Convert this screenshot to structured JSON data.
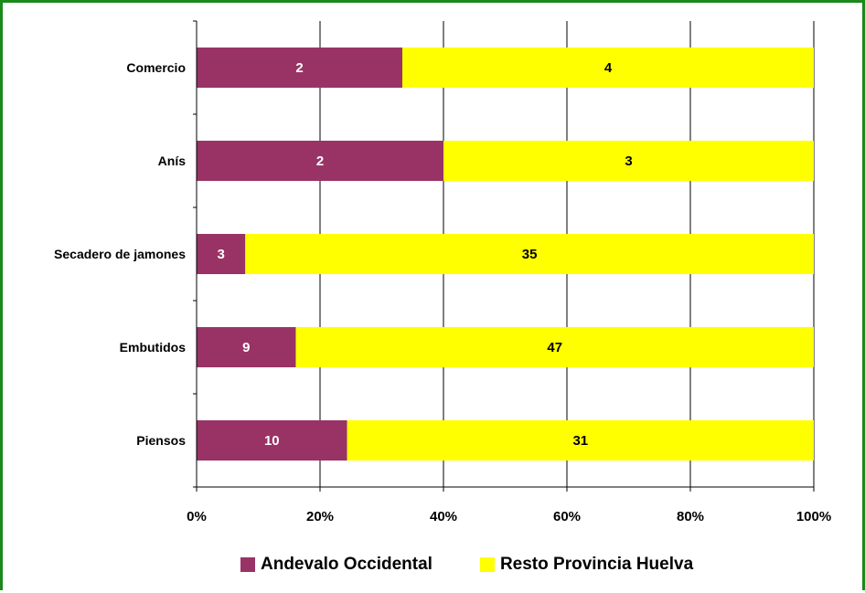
{
  "chart_data": {
    "type": "bar",
    "orientation": "horizontal",
    "stacking": "percent",
    "categories": [
      "Comercio",
      "Anís",
      "Secadero de jamones",
      "Embutidos",
      "Piensos"
    ],
    "series": [
      {
        "name": "Andevalo Occidental",
        "values": [
          2,
          2,
          3,
          9,
          10
        ],
        "color": "#993366",
        "label_color": "#ffffff"
      },
      {
        "name": "Resto Provincia Huelva",
        "values": [
          4,
          3,
          35,
          47,
          31
        ],
        "color": "#ffff00",
        "label_color": "#000000"
      }
    ],
    "x_ticks": [
      "0%",
      "20%",
      "40%",
      "60%",
      "80%",
      "100%"
    ],
    "xlim": [
      0,
      100
    ],
    "grid": "vertical",
    "legend_position": "bottom",
    "frame_color": "#1a8a1a"
  }
}
